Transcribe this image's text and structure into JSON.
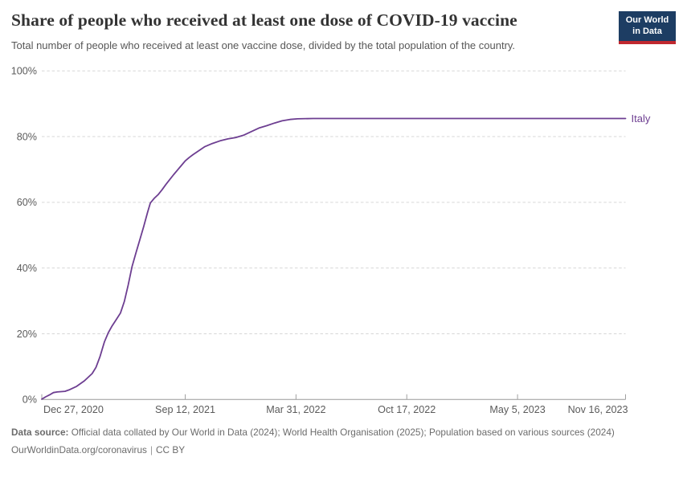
{
  "header": {
    "title": "Share of people who received at least one dose of COVID-19 vaccine",
    "subtitle": "Total number of people who received at least one vaccine dose, divided by the total population of the country.",
    "logo": {
      "line1": "Our World",
      "line2": "in Data"
    }
  },
  "chart_data": {
    "type": "line",
    "title": "Share of people who received at least one dose of COVID-19 vaccine",
    "xlabel": "",
    "ylabel": "",
    "ylim": [
      0,
      100
    ],
    "x_range": [
      "2020-12-27",
      "2023-11-16"
    ],
    "grid": "horizontal-dashed",
    "legend_position": "end-of-line-label",
    "y_ticks": [
      {
        "value": 0,
        "label": "0%"
      },
      {
        "value": 20,
        "label": "20%"
      },
      {
        "value": 40,
        "label": "40%"
      },
      {
        "value": 60,
        "label": "60%"
      },
      {
        "value": 80,
        "label": "80%"
      },
      {
        "value": 100,
        "label": "100%"
      }
    ],
    "x_ticks": [
      {
        "date": "2020-12-27",
        "label": "Dec 27, 2020",
        "align": "start"
      },
      {
        "date": "2021-09-12",
        "label": "Sep 12, 2021",
        "align": "middle"
      },
      {
        "date": "2022-03-31",
        "label": "Mar 31, 2022",
        "align": "middle"
      },
      {
        "date": "2022-10-17",
        "label": "Oct 17, 2022",
        "align": "middle"
      },
      {
        "date": "2023-05-05",
        "label": "May 5, 2023",
        "align": "middle"
      },
      {
        "date": "2023-11-16",
        "label": "Nov 16, 2023",
        "align": "end"
      }
    ],
    "series": [
      {
        "name": "Italy",
        "color": "#6d3e91",
        "points": [
          [
            "2020-12-27",
            0.1
          ],
          [
            "2021-01-03",
            0.8
          ],
          [
            "2021-01-10",
            1.4
          ],
          [
            "2021-01-17",
            2.1
          ],
          [
            "2021-01-24",
            2.3
          ],
          [
            "2021-02-07",
            2.5
          ],
          [
            "2021-02-14",
            2.9
          ],
          [
            "2021-02-28",
            4.0
          ],
          [
            "2021-03-14",
            5.7
          ],
          [
            "2021-03-28",
            7.9
          ],
          [
            "2021-04-04",
            9.8
          ],
          [
            "2021-04-11",
            13.0
          ],
          [
            "2021-04-19",
            17.5
          ],
          [
            "2021-04-26",
            20.3
          ],
          [
            "2021-05-03",
            22.4
          ],
          [
            "2021-05-10",
            24.2
          ],
          [
            "2021-05-18",
            26.3
          ],
          [
            "2021-05-25",
            29.8
          ],
          [
            "2021-06-01",
            34.8
          ],
          [
            "2021-06-08",
            40.5
          ],
          [
            "2021-06-15",
            44.6
          ],
          [
            "2021-06-22",
            48.6
          ],
          [
            "2021-06-29",
            52.6
          ],
          [
            "2021-07-06",
            57.0
          ],
          [
            "2021-07-11",
            59.8
          ],
          [
            "2021-07-18",
            61.2
          ],
          [
            "2021-07-25",
            62.3
          ],
          [
            "2021-08-01",
            63.8
          ],
          [
            "2021-08-08",
            65.4
          ],
          [
            "2021-08-15",
            66.9
          ],
          [
            "2021-08-22",
            68.4
          ],
          [
            "2021-08-29",
            69.8
          ],
          [
            "2021-09-05",
            71.2
          ],
          [
            "2021-09-12",
            72.6
          ],
          [
            "2021-09-19",
            73.6
          ],
          [
            "2021-09-26",
            74.5
          ],
          [
            "2021-10-03",
            75.3
          ],
          [
            "2021-10-10",
            76.1
          ],
          [
            "2021-10-17",
            76.9
          ],
          [
            "2021-10-31",
            77.9
          ],
          [
            "2021-11-14",
            78.7
          ],
          [
            "2021-11-28",
            79.3
          ],
          [
            "2021-12-12",
            79.7
          ],
          [
            "2021-12-26",
            80.4
          ],
          [
            "2022-01-09",
            81.5
          ],
          [
            "2022-01-23",
            82.6
          ],
          [
            "2022-02-06",
            83.3
          ],
          [
            "2022-02-20",
            84.1
          ],
          [
            "2022-03-06",
            84.8
          ],
          [
            "2022-03-20",
            85.2
          ],
          [
            "2022-04-03",
            85.4
          ],
          [
            "2022-05-01",
            85.5
          ],
          [
            "2022-08-01",
            85.5
          ],
          [
            "2022-11-01",
            85.5
          ],
          [
            "2023-02-01",
            85.5
          ],
          [
            "2023-06-01",
            85.5
          ],
          [
            "2023-11-16",
            85.5
          ]
        ]
      }
    ]
  },
  "footer": {
    "source_label": "Data source:",
    "source_text": "Official data collated by Our World in Data (2024); World Health Organisation (2025); Population based on various sources (2024)",
    "url": "OurWorldinData.org/coronavirus",
    "separator": "|",
    "license": "CC BY"
  },
  "colors": {
    "line": "#6d3e91",
    "grid": "#d7d7d7",
    "axis": "#999999",
    "tick": "#a0a0a0",
    "axis_label": "#5b5b5b",
    "logo_bg": "#1d3d63",
    "logo_bar": "#c0282f"
  }
}
